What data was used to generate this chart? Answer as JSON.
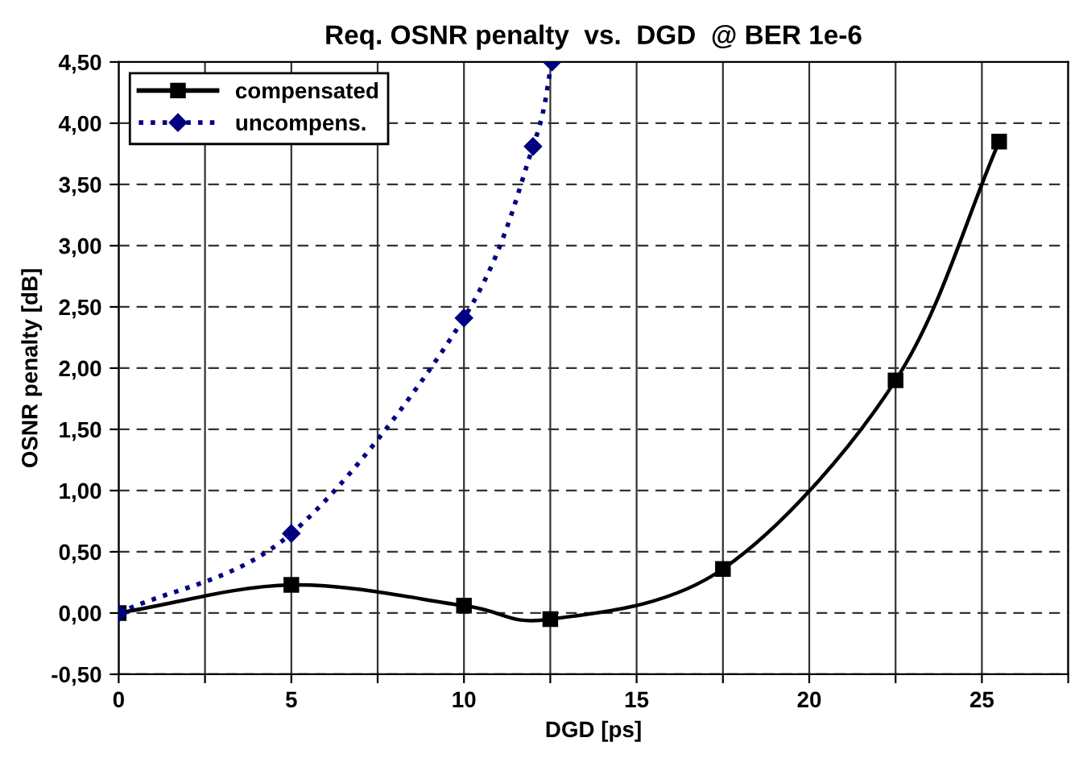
{
  "chart_data": {
    "type": "line",
    "title": "Req. OSNR penalty  vs.  DGD  @ BER 1e-6",
    "xlabel": "DGD [ps]",
    "ylabel": "OSNR penalty [dB]",
    "series": [
      {
        "name": "compensated",
        "color": "#000000",
        "marker": "square",
        "line_style": "solid",
        "x": [
          0,
          5,
          10,
          12.5,
          17.5,
          22.5,
          25.5
        ],
        "values": [
          0,
          0.23,
          0.06,
          -0.05,
          0.36,
          1.9,
          3.85
        ]
      },
      {
        "name": "uncompens.",
        "color": "#000080",
        "marker": "diamond",
        "line_style": "dotted",
        "x": [
          0,
          5,
          10,
          12,
          12.55
        ],
        "values": [
          0,
          0.65,
          2.41,
          3.81,
          4.5
        ]
      }
    ],
    "xlim": [
      0,
      27.5
    ],
    "xticks": [
      0,
      {
        "value": 2.5,
        "label": null
      },
      5,
      {
        "value": 7.5,
        "label": null
      },
      10,
      {
        "value": 12.5,
        "label": null
      },
      15,
      {
        "value": 17.5,
        "label": null
      },
      20,
      {
        "value": 22.5,
        "label": null
      },
      25,
      {
        "value": 27.5,
        "label": null
      }
    ],
    "ylim": [
      -0.5,
      4.5
    ],
    "yticks": [
      {
        "value": -0.5,
        "label": "-0,50"
      },
      {
        "value": 0,
        "label": "0,00"
      },
      {
        "value": 0.5,
        "label": "0,50"
      },
      {
        "value": 1,
        "label": "1,00"
      },
      {
        "value": 1.5,
        "label": "1,50"
      },
      {
        "value": 2,
        "label": "2,00"
      },
      {
        "value": 2.5,
        "label": "2,50"
      },
      {
        "value": 3,
        "label": "3,00"
      },
      {
        "value": 3.5,
        "label": "3,50"
      },
      {
        "value": 4,
        "label": "4,00"
      },
      {
        "value": 4.5,
        "label": "4,50"
      }
    ],
    "grid": true,
    "legend": "top left"
  }
}
